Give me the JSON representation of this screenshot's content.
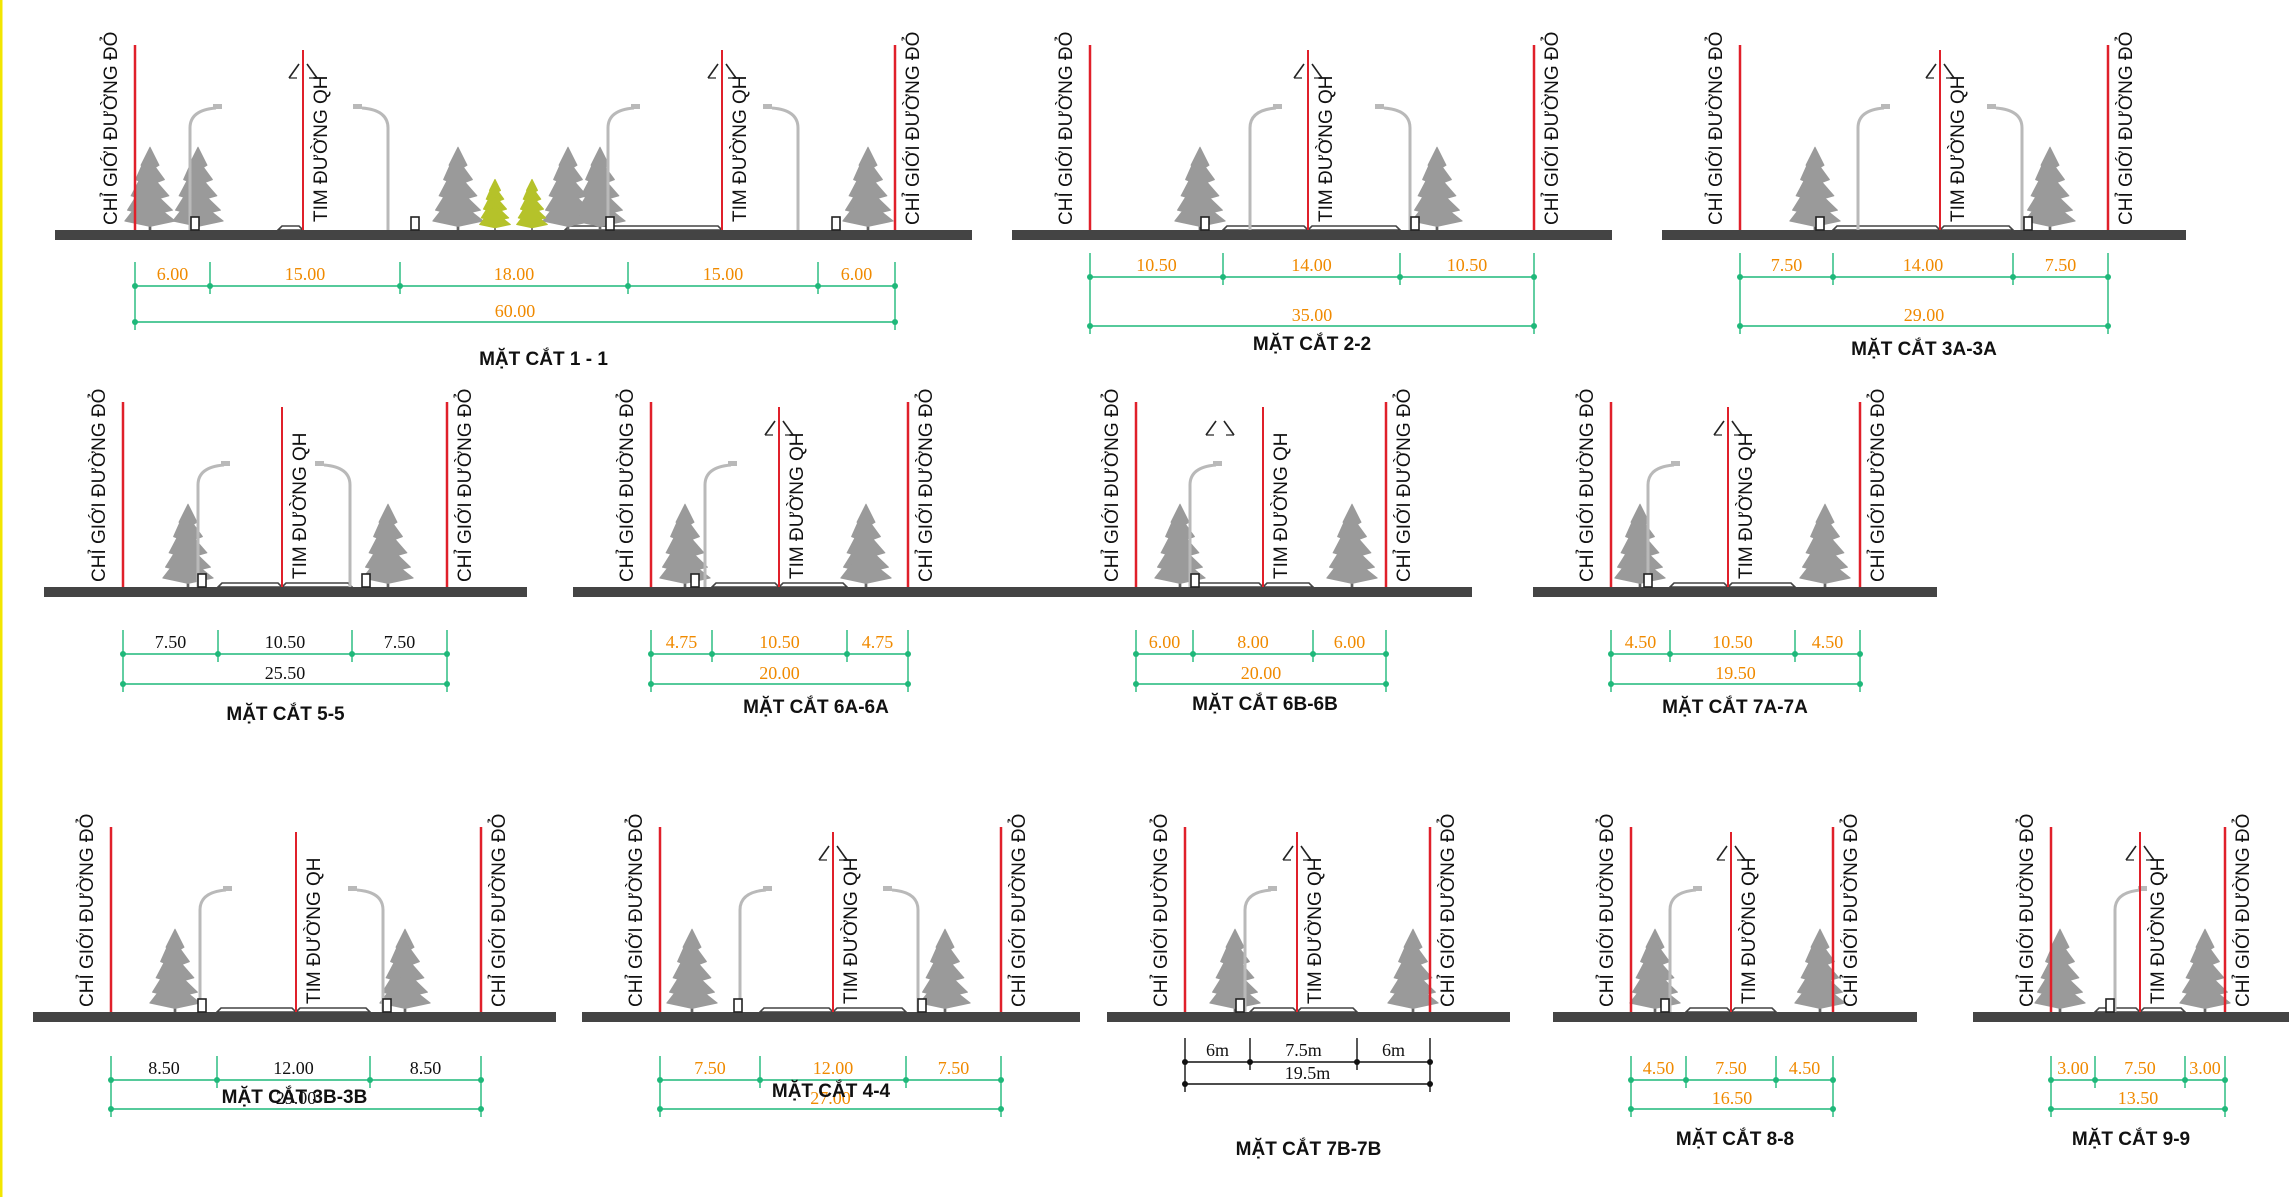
{
  "labels": {
    "boundary": "CHỈ GIỚI ĐƯỜNG ĐỎ",
    "centerline": "TIM ĐƯỜNG QH"
  },
  "colors": {
    "boundary_line": "#e0202a",
    "dimension_line": "#1fb87a",
    "orange_value": "#f08a00",
    "black_value": "#111111",
    "ground": "#444444",
    "tree": "#9a9a9a",
    "small_tree": "#b5c22a",
    "frame_left": "#f2e600"
  },
  "sections": [
    {
      "title": "MẶT CẮT 1 - 1",
      "value_color": "orange",
      "parts": [
        "6.00",
        "15.00",
        "18.00",
        "15.00",
        "6.00"
      ],
      "total": "60.00"
    },
    {
      "title": "MẶT CẮT 2-2",
      "value_color": "orange",
      "parts": [
        "10.50",
        "14.00",
        "10.50"
      ],
      "total": "35.00"
    },
    {
      "title": "MẶT CẮT 3A-3A",
      "value_color": "orange",
      "parts": [
        "7.50",
        "14.00",
        "7.50"
      ],
      "total": "29.00"
    },
    {
      "title": "MẶT CẮT 5-5",
      "value_color": "black",
      "parts": [
        "7.50",
        "10.50",
        "7.50"
      ],
      "total": "25.50"
    },
    {
      "title": "MẶT CẮT 6A-6A",
      "value_color": "orange",
      "parts": [
        "4.75",
        "10.50",
        "4.75"
      ],
      "total": "20.00"
    },
    {
      "title": "MẶT CẮT 6B-6B",
      "value_color": "orange",
      "parts": [
        "6.00",
        "8.00",
        "6.00"
      ],
      "total": "20.00"
    },
    {
      "title": "MẶT CẮT 7A-7A",
      "value_color": "orange",
      "parts": [
        "4.50",
        "10.50",
        "4.50"
      ],
      "total": "19.50"
    },
    {
      "title": "MẶT CẮT 3B-3B",
      "value_color": "black",
      "parts": [
        "8.50",
        "12.00",
        "8.50"
      ],
      "total": "29.00"
    },
    {
      "title": "MẶT CẮT 4-4",
      "value_color": "orange",
      "parts": [
        "7.50",
        "12.00",
        "7.50"
      ],
      "total": "27.00"
    },
    {
      "title": "MẶT CẮT 7B-7B",
      "value_color": "black",
      "parts": [
        "6m",
        "7.5m",
        "6m"
      ],
      "total": "19.5m"
    },
    {
      "title": "MẶT CẮT 8-8",
      "value_color": "orange",
      "parts": [
        "4.50",
        "7.50",
        "4.50"
      ],
      "total": "16.50"
    },
    {
      "title": "MẶT CẮT 9-9",
      "value_color": "orange",
      "parts": [
        "3.00",
        "7.50",
        "3.00"
      ],
      "total": "13.50"
    }
  ]
}
